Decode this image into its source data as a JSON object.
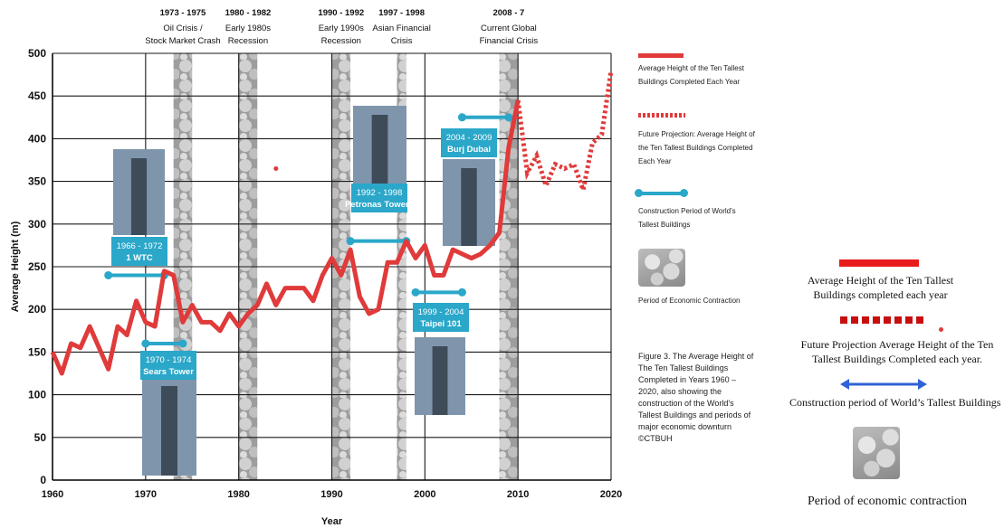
{
  "chart_data": {
    "type": "line",
    "title": "",
    "xlabel": "Year",
    "ylabel": "Average Height (m)",
    "xlim": [
      1960,
      2020
    ],
    "ylim": [
      0,
      500
    ],
    "x_ticks": [
      "1960",
      "1970",
      "1980",
      "1990",
      "2000",
      "2010",
      "2020"
    ],
    "y_ticks": [
      "0",
      "50",
      "100",
      "150",
      "200",
      "250",
      "300",
      "350",
      "400",
      "450",
      "500"
    ],
    "grid": true,
    "legend_position": "right",
    "series": [
      {
        "name": "Average Height of the Ten Tallest Buildings Completed Each Year",
        "style": "solid",
        "color": "#e03a3a",
        "x": [
          1960,
          1961,
          1962,
          1963,
          1964,
          1965,
          1966,
          1967,
          1968,
          1969,
          1970,
          1971,
          1972,
          1973,
          1974,
          1975,
          1976,
          1977,
          1978,
          1979,
          1980,
          1981,
          1982,
          1983,
          1984,
          1985,
          1986,
          1987,
          1988,
          1989,
          1990,
          1991,
          1992,
          1993,
          1994,
          1995,
          1996,
          1997,
          1998,
          1999,
          2000,
          2001,
          2002,
          2003,
          2004,
          2005,
          2006,
          2007,
          2008,
          2009,
          2010
        ],
        "y": [
          150,
          125,
          160,
          155,
          180,
          155,
          130,
          180,
          170,
          210,
          185,
          180,
          245,
          240,
          185,
          205,
          185,
          185,
          175,
          195,
          180,
          195,
          205,
          230,
          205,
          225,
          225,
          225,
          210,
          240,
          260,
          240,
          270,
          215,
          195,
          200,
          255,
          255,
          280,
          260,
          275,
          240,
          240,
          270,
          265,
          260,
          265,
          275,
          290,
          390,
          445
        ]
      },
      {
        "name": "Future Projection: Average Height of the Ten Tallest Buildings Completed Each Year",
        "style": "dotted",
        "color": "#e03a3a",
        "x": [
          2010,
          2011,
          2012,
          2013,
          2014,
          2015,
          2016,
          2017,
          2018,
          2019,
          2020
        ],
        "y": [
          445,
          360,
          380,
          345,
          370,
          365,
          370,
          340,
          395,
          405,
          480
        ]
      }
    ],
    "outlier_point": {
      "x": 1984,
      "y": 365
    },
    "contraction_periods": [
      {
        "label": "1973 - 1975",
        "desc": "Oil Crisis / Stock Market Crash",
        "start": 1973,
        "end": 1975
      },
      {
        "label": "1980 - 1982",
        "desc": "Early 1980s Recession",
        "start": 1980,
        "end": 1982
      },
      {
        "label": "1990 - 1992",
        "desc": "Early 1990s Recession",
        "start": 1990,
        "end": 1992
      },
      {
        "label": "1997 - 1998",
        "desc": "Asian Financial Crisis",
        "start": 1997,
        "end": 1998
      },
      {
        "label": "2008 - 7",
        "desc": "Current Global Financial Crisis",
        "start": 2008,
        "end": 2010
      }
    ],
    "construction_periods": [
      {
        "years": "1966 - 1972",
        "name": "1 WTC",
        "start": 1966,
        "end": 1972,
        "height": 240
      },
      {
        "years": "1970 - 1974",
        "name": "Sears Tower",
        "start": 1970,
        "end": 1974,
        "height": 160
      },
      {
        "years": "1992 - 1998",
        "name": "Petronas Towers",
        "start": 1992,
        "end": 1998,
        "height": 280
      },
      {
        "years": "1999 - 2004",
        "name": "Taipei 101",
        "start": 1999,
        "end": 2004,
        "height": 220
      },
      {
        "years": "2004 - 2009",
        "name": "Burj Dubai",
        "start": 2004,
        "end": 2009,
        "height": 425
      }
    ]
  },
  "legend": {
    "solid": "Average Height of the Ten Tallest Buildings Completed Each Year",
    "dotted": "Future Projection: Average Height of the Ten Tallest Buildings Completed Each Year",
    "construction": "Construction Period of World's Tallest Buildings",
    "contraction": "Period of Economic Contraction"
  },
  "caption": "Figure 3. The Average Height of The Ten Tallest Buildings Completed in Years 1960 – 2020, also showing the construction of the World's Tallest Buildings and periods of major economic downturn ©CTBUH",
  "legend2": {
    "solid": "Average Height of the Ten Tallest Buildings completed each year",
    "dotted": "Future Projection Average Height of the Ten Tallest Buildings Completed each year.",
    "construction": "Construction period of World’s Tallest Buildings",
    "contraction": "Period of economic contraction"
  },
  "colors": {
    "line": "#e03a3a",
    "construction": "#2aa7c9",
    "label_bg": "#2aa7c9",
    "arrow": "#2f62d6"
  }
}
